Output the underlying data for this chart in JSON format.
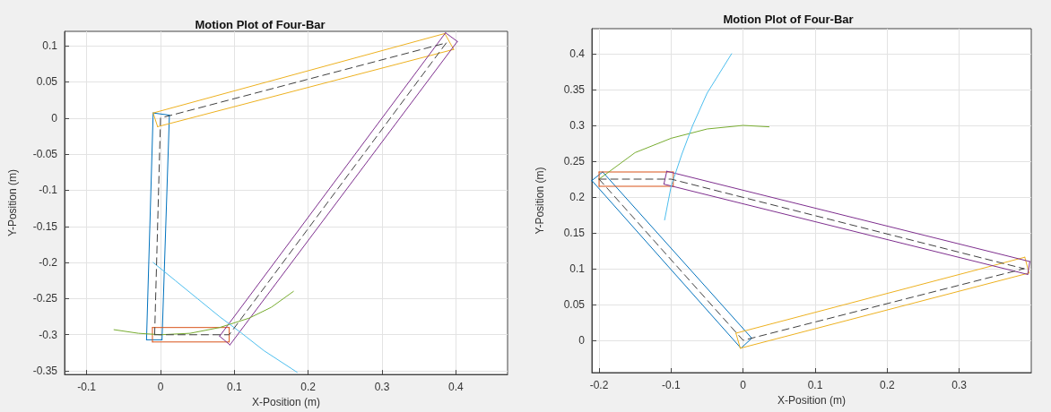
{
  "chart_data": [
    {
      "type": "line",
      "title": "Motion Plot of Four-Bar",
      "xlabel": "X-Position (m)",
      "ylabel": "Y-Position (m)",
      "xlim": [
        -0.13,
        0.47
      ],
      "ylim": [
        -0.355,
        0.12
      ],
      "xticks": [
        -0.1,
        0,
        0.1,
        0.2,
        0.3,
        0.4
      ],
      "yticks": [
        -0.35,
        -0.3,
        -0.25,
        -0.2,
        -0.15,
        -0.1,
        -0.05,
        0,
        0.05,
        0.1
      ],
      "grid": true,
      "marker": "none",
      "series": [
        {
          "color": "#0072bd",
          "x": [
            -0.019,
            -0.01
          ],
          "values": [
            -0.307,
            0.007
          ]
        },
        {
          "color": "#0072bd",
          "x": [
            -0.01,
            0.012
          ],
          "values": [
            0.007,
            0.004
          ]
        },
        {
          "color": "#0072bd",
          "x": [
            0.002,
            0.012
          ],
          "values": [
            -0.307,
            0.004
          ]
        },
        {
          "color": "#0072bd",
          "x": [
            -0.019,
            0.002
          ],
          "values": [
            -0.307,
            -0.307
          ]
        },
        {
          "color": "#d95319",
          "x": [
            -0.011,
            0.093
          ],
          "values": [
            -0.29,
            -0.29
          ]
        },
        {
          "color": "#d95319",
          "x": [
            -0.011,
            0.093
          ],
          "values": [
            -0.31,
            -0.31
          ]
        },
        {
          "color": "#d95319",
          "x": [
            -0.011,
            -0.011
          ],
          "values": [
            -0.31,
            -0.29
          ]
        },
        {
          "color": "#d95319",
          "x": [
            0.093,
            0.093
          ],
          "values": [
            -0.31,
            -0.29
          ]
        },
        {
          "color": "#edb120",
          "x": [
            -0.01,
            0.385
          ],
          "values": [
            0.007,
            0.117
          ]
        },
        {
          "color": "#edb120",
          "x": [
            0.385,
            0.397
          ],
          "values": [
            0.117,
            0.095
          ]
        },
        {
          "color": "#edb120",
          "x": [
            -0.004,
            0.397
          ],
          "values": [
            -0.012,
            0.095
          ]
        },
        {
          "color": "#edb120",
          "x": [
            -0.01,
            -0.004
          ],
          "values": [
            0.007,
            -0.012
          ]
        },
        {
          "color": "#7e2f8e",
          "x": [
            0.08,
            0.386
          ],
          "values": [
            -0.302,
            0.118
          ]
        },
        {
          "color": "#7e2f8e",
          "x": [
            0.386,
            0.402
          ],
          "values": [
            0.118,
            0.106
          ]
        },
        {
          "color": "#7e2f8e",
          "x": [
            0.094,
            0.402
          ],
          "values": [
            -0.314,
            0.106
          ]
        },
        {
          "color": "#7e2f8e",
          "x": [
            0.08,
            0.094
          ],
          "values": [
            -0.302,
            -0.314
          ]
        },
        {
          "color": "#77ac30",
          "x": [
            -0.063,
            -0.03,
            0,
            0.04,
            0.08,
            0.12,
            0.15,
            0.18
          ],
          "values": [
            -0.293,
            -0.298,
            -0.3,
            -0.298,
            -0.29,
            -0.277,
            -0.262,
            -0.24
          ]
        },
        {
          "color": "#4dbeee",
          "x": [
            -0.01,
            0.02,
            0.05,
            0.08,
            0.11,
            0.14,
            0.185
          ],
          "values": [
            -0.2,
            -0.225,
            -0.25,
            -0.275,
            -0.298,
            -0.322,
            -0.352
          ]
        },
        {
          "color": "#404040",
          "line_style": "dashed",
          "x": [
            -0.008,
            0,
            0.387
          ],
          "values": [
            -0.3,
            0,
            0.104
          ]
        },
        {
          "color": "#404040",
          "line_style": "dashed",
          "x": [
            -0.008,
            0.093,
            0.387
          ],
          "values": [
            -0.3,
            -0.3,
            0.104
          ]
        }
      ]
    },
    {
      "type": "line",
      "title": "Motion Plot of Four-Bar",
      "xlabel": "X-Position (m)",
      "ylabel": "Y-Position (m)",
      "xlim": [
        -0.21,
        0.4
      ],
      "ylim": [
        -0.045,
        0.435
      ],
      "xticks": [
        -0.2,
        -0.1,
        0,
        0.1,
        0.2,
        0.3
      ],
      "yticks": [
        0,
        0.05,
        0.1,
        0.15,
        0.2,
        0.25,
        0.3,
        0.35,
        0.4
      ],
      "grid": true,
      "marker": "none",
      "series": [
        {
          "color": "#0072bd",
          "x": [
            -0.21,
            -0.195
          ],
          "values": [
            0.223,
            0.235
          ]
        },
        {
          "color": "#0072bd",
          "x": [
            -0.195,
            0.012
          ],
          "values": [
            0.235,
            0.003
          ]
        },
        {
          "color": "#0072bd",
          "x": [
            -0.003,
            0.012
          ],
          "values": [
            -0.011,
            0.003
          ]
        },
        {
          "color": "#0072bd",
          "x": [
            -0.21,
            -0.003
          ],
          "values": [
            0.223,
            -0.011
          ]
        },
        {
          "color": "#d95319",
          "x": [
            -0.2,
            -0.097
          ],
          "values": [
            0.235,
            0.235
          ]
        },
        {
          "color": "#d95319",
          "x": [
            -0.2,
            -0.097
          ],
          "values": [
            0.215,
            0.215
          ]
        },
        {
          "color": "#d95319",
          "x": [
            -0.2,
            -0.2
          ],
          "values": [
            0.215,
            0.235
          ]
        },
        {
          "color": "#d95319",
          "x": [
            -0.097,
            -0.097
          ],
          "values": [
            0.215,
            0.235
          ]
        },
        {
          "color": "#edb120",
          "x": [
            -0.01,
            0.391
          ],
          "values": [
            0.01,
            0.116
          ]
        },
        {
          "color": "#edb120",
          "x": [
            0.391,
            0.397
          ],
          "values": [
            0.116,
            0.094
          ]
        },
        {
          "color": "#edb120",
          "x": [
            -0.004,
            0.397
          ],
          "values": [
            -0.011,
            0.094
          ]
        },
        {
          "color": "#edb120",
          "x": [
            -0.01,
            -0.004
          ],
          "values": [
            0.01,
            -0.011
          ]
        },
        {
          "color": "#7e2f8e",
          "x": [
            -0.106,
            0.398
          ],
          "values": [
            0.236,
            0.11
          ]
        },
        {
          "color": "#7e2f8e",
          "x": [
            0.395,
            0.398
          ],
          "values": [
            0.092,
            0.11
          ]
        },
        {
          "color": "#7e2f8e",
          "x": [
            -0.11,
            0.395
          ],
          "values": [
            0.218,
            0.092
          ]
        },
        {
          "color": "#7e2f8e",
          "x": [
            -0.11,
            -0.106
          ],
          "values": [
            0.218,
            0.236
          ]
        },
        {
          "color": "#77ac30",
          "x": [
            -0.2,
            -0.15,
            -0.1,
            -0.05,
            0,
            0.036
          ],
          "values": [
            0.225,
            0.262,
            0.282,
            0.295,
            0.3,
            0.298
          ]
        },
        {
          "color": "#4dbeee",
          "x": [
            -0.109,
            -0.1,
            -0.085,
            -0.07,
            -0.05,
            -0.016
          ],
          "values": [
            0.168,
            0.215,
            0.26,
            0.3,
            0.345,
            0.4
          ]
        },
        {
          "color": "#404040",
          "line_style": "dashed",
          "x": [
            -0.2,
            0,
            0.39
          ],
          "values": [
            0.225,
            0,
            0.1
          ]
        },
        {
          "color": "#404040",
          "line_style": "dashed",
          "x": [
            -0.2,
            -0.1,
            0.39
          ],
          "values": [
            0.225,
            0.225,
            0.1
          ]
        }
      ]
    }
  ]
}
